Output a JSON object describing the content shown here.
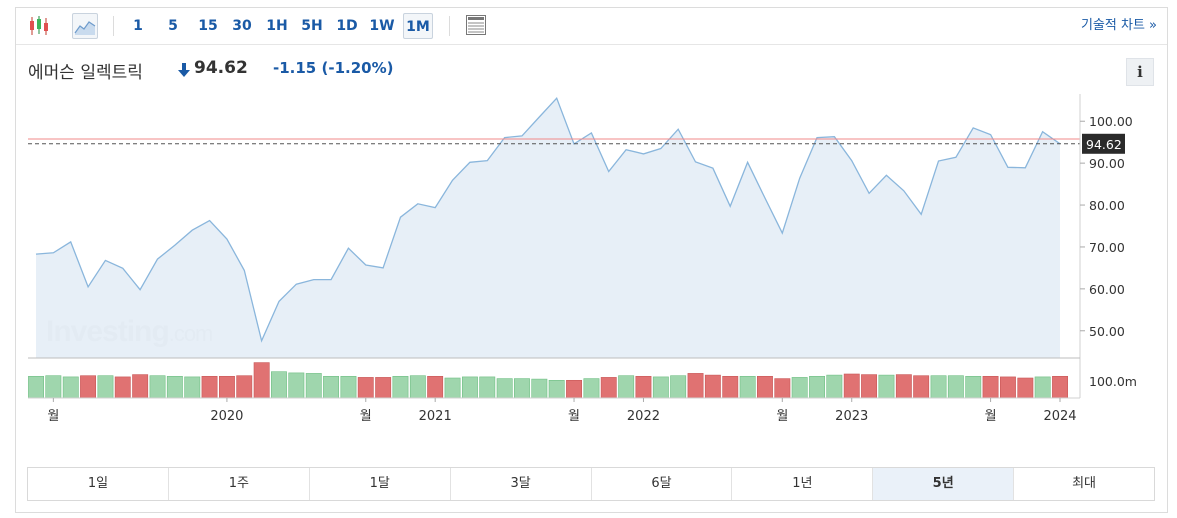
{
  "toolbar": {
    "timeframes": [
      "1",
      "5",
      "15",
      "30",
      "1H",
      "5H",
      "1D",
      "1W",
      "1M"
    ],
    "active_timeframe": "1M",
    "technical_link": "기술적 차트 »"
  },
  "quote": {
    "name": "에머슨 일렉트릭",
    "direction_icon": "down-arrow-icon",
    "price": "94.62",
    "change": "-1.15",
    "change_pct": "(-1.20%)"
  },
  "info_label": "i",
  "watermark": {
    "brand": "Investing",
    "suffix": ".com"
  },
  "range_tabs": [
    "1일",
    "1주",
    "1달",
    "3달",
    "6달",
    "1년",
    "5년",
    "최대"
  ],
  "active_range": "5년",
  "colors": {
    "line": "#8ab6dc",
    "area": "#e4edf6",
    "price_marker": "#2a2a2a",
    "hline_red": "#f08a8a",
    "vol_up": "#9fd6ad",
    "vol_down": "#e07272",
    "accent": "#1a5aa6"
  },
  "chart_data": {
    "type": "area",
    "y_ticks": [
      "100.00",
      "90.00",
      "80.00",
      "70.00",
      "60.00",
      "50.00"
    ],
    "ylim": [
      43.5,
      106.5
    ],
    "x_labels": [
      "월",
      "2020",
      "월",
      "2021",
      "월",
      "2022",
      "월",
      "2023",
      "월",
      "2024"
    ],
    "current_price_label": "94.62",
    "current_price": 94.62,
    "reference_price": 95.77,
    "close": [
      68.3,
      68.6,
      71.2,
      60.5,
      66.8,
      64.9,
      59.8,
      67.1,
      70.4,
      74.0,
      76.3,
      71.9,
      64.4,
      47.6,
      57.0,
      61.1,
      62.2,
      62.2,
      69.7,
      65.7,
      65.0,
      77.1,
      80.3,
      79.4,
      85.9,
      90.2,
      90.6,
      96.1,
      96.5,
      101.0,
      105.5,
      94.6,
      97.2,
      88.0,
      93.2,
      92.2,
      93.5,
      98.1,
      90.3,
      88.8,
      79.7,
      90.2,
      81.7,
      73.3,
      86.4,
      96.1,
      96.3,
      90.6,
      82.8,
      87.1,
      83.4,
      77.8,
      90.5,
      91.4,
      98.4,
      96.8,
      89.0,
      88.9,
      97.5,
      94.62
    ],
    "volume_label": "100.0m",
    "volume": [
      38,
      39,
      37,
      39,
      39,
      37,
      41,
      39,
      38,
      37,
      38,
      38,
      39,
      62,
      46,
      44,
      43,
      38,
      38,
      36,
      36,
      38,
      39,
      38,
      35,
      37,
      37,
      34,
      34,
      33,
      31,
      31,
      34,
      36,
      39,
      38,
      37,
      39,
      43,
      40,
      38,
      38,
      38,
      34,
      36,
      38,
      40,
      42,
      41,
      40,
      41,
      39,
      39,
      39,
      38,
      38,
      37,
      35,
      37,
      38
    ],
    "volume_up": [
      true,
      true,
      true,
      false,
      true,
      false,
      false,
      true,
      true,
      true,
      false,
      false,
      false,
      false,
      true,
      true,
      true,
      true,
      true,
      false,
      false,
      true,
      true,
      false,
      true,
      true,
      true,
      true,
      true,
      true,
      true,
      false,
      true,
      false,
      true,
      false,
      true,
      true,
      false,
      false,
      false,
      true,
      false,
      false,
      true,
      true,
      true,
      false,
      false,
      true,
      false,
      false,
      true,
      true,
      true,
      false,
      false,
      false,
      true,
      false
    ]
  }
}
